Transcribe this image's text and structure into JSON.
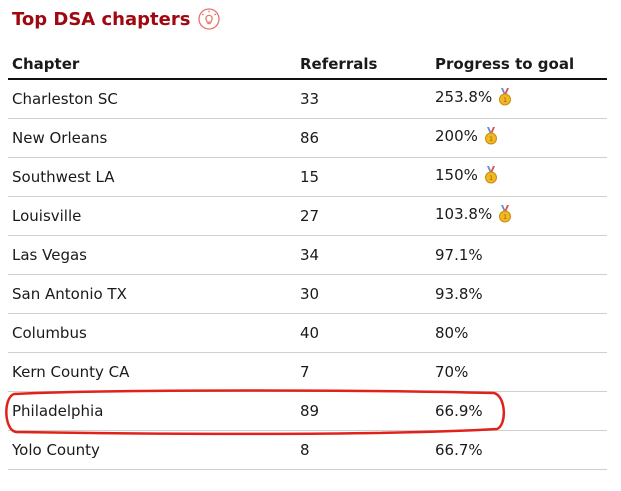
{
  "header": {
    "title": "Top DSA chapters"
  },
  "table": {
    "columns": [
      "Chapter",
      "Referrals",
      "Progress to goal"
    ],
    "rows": [
      [
        "Charleston SC",
        33,
        "253.8%"
      ],
      [
        "New Orleans",
        86,
        "200%"
      ],
      [
        "Southwest LA",
        15,
        "150%"
      ],
      [
        "Louisville",
        27,
        "103.8%"
      ],
      [
        "Las Vegas",
        34,
        "97.1%"
      ],
      [
        "San Antonio TX",
        30,
        "93.8%"
      ],
      [
        "Columbus",
        40,
        "80%"
      ],
      [
        "Kern County CA",
        7,
        "70%"
      ],
      [
        "Philadelphia",
        89,
        "66.9%"
      ],
      [
        "Yolo County",
        8,
        "66.7%"
      ]
    ]
  }
}
